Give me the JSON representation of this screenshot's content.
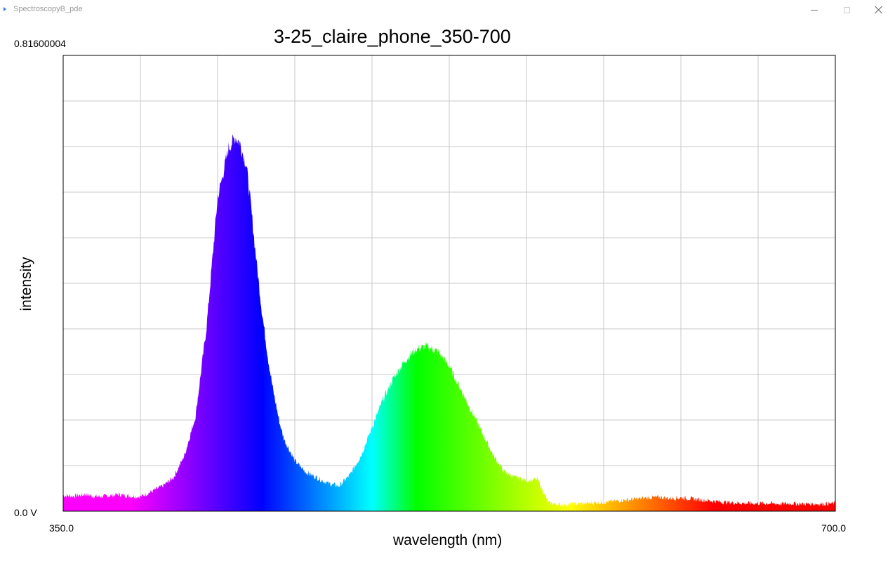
{
  "window": {
    "title": "SpectroscopyB_pde",
    "controls": {
      "minimize": "minimize-icon",
      "maximize": "maximize-icon",
      "close": "close-icon"
    }
  },
  "chart_data": {
    "type": "area",
    "title": "3-25_claire_phone_350-700",
    "xlabel": "wavelength (nm)",
    "ylabel": "intensity",
    "xlim": [
      350.0,
      700.0
    ],
    "ylim": [
      0.0,
      0.81600004
    ],
    "x_min_label": "350.0",
    "x_max_label": "700.0",
    "y_max_label": "0.81600004",
    "y_min_label": "0.0 V",
    "grid": true,
    "grid_divisions": {
      "x": 10,
      "y": 10
    },
    "fill": "visible-spectrum color gradient by wavelength",
    "series": [
      {
        "x": [
          350,
          355,
          360,
          365,
          370,
          375,
          380,
          385,
          390,
          395,
          400,
          405,
          410,
          415,
          420,
          425,
          428,
          430,
          433,
          435,
          437,
          440,
          443,
          445,
          448,
          450,
          455,
          460,
          465,
          470,
          475,
          480,
          485,
          487,
          490,
          495,
          500,
          505,
          510,
          515,
          520,
          525,
          530,
          535,
          540,
          545,
          550,
          555,
          560,
          565,
          570,
          575,
          580,
          585,
          590,
          595,
          600,
          605,
          610,
          615,
          620,
          625,
          630,
          635,
          640,
          645,
          650,
          655,
          660,
          665,
          670,
          675,
          680,
          685,
          690,
          695,
          700
        ],
        "y": [
          0.028,
          0.027,
          0.03,
          0.026,
          0.027,
          0.03,
          0.027,
          0.026,
          0.035,
          0.045,
          0.06,
          0.1,
          0.17,
          0.33,
          0.56,
          0.65,
          0.67,
          0.66,
          0.62,
          0.55,
          0.47,
          0.36,
          0.27,
          0.22,
          0.16,
          0.13,
          0.09,
          0.07,
          0.06,
          0.05,
          0.045,
          0.065,
          0.1,
          0.12,
          0.15,
          0.2,
          0.24,
          0.27,
          0.29,
          0.295,
          0.285,
          0.26,
          0.22,
          0.18,
          0.14,
          0.1,
          0.07,
          0.06,
          0.055,
          0.057,
          0.015,
          0.012,
          0.012,
          0.014,
          0.015,
          0.016,
          0.018,
          0.02,
          0.022,
          0.024,
          0.025,
          0.023,
          0.024,
          0.022,
          0.02,
          0.018,
          0.016,
          0.015,
          0.014,
          0.014,
          0.014,
          0.013,
          0.014,
          0.013,
          0.013,
          0.013,
          0.014
        ]
      }
    ]
  }
}
